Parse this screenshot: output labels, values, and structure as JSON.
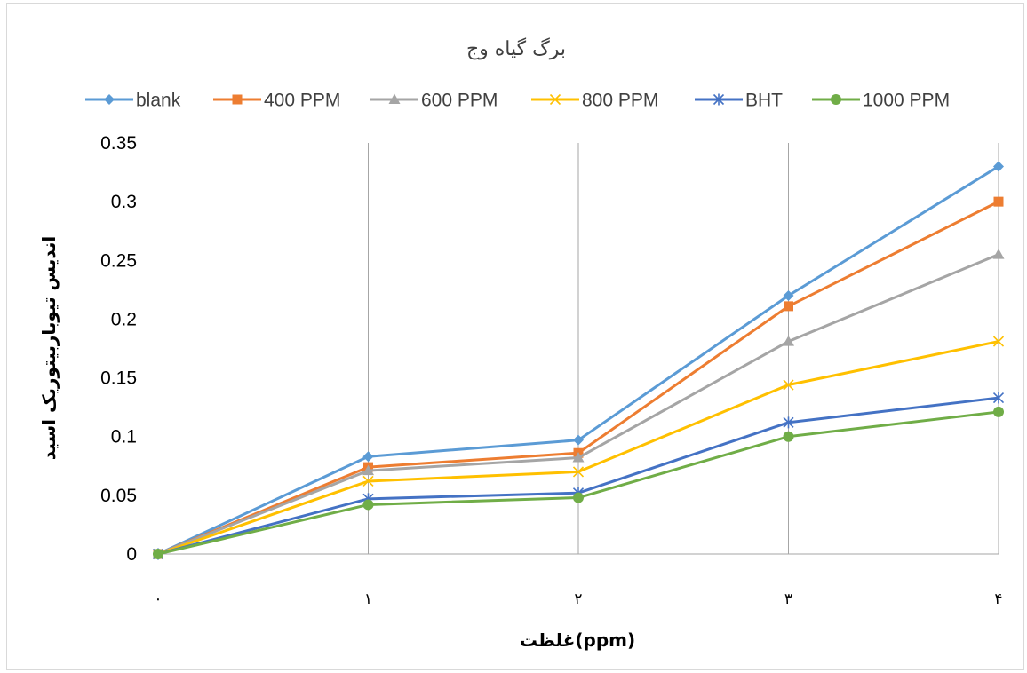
{
  "chart_data": {
    "type": "line",
    "title": "برگ گیاه وج",
    "xlabel": "غلظت(ppm)",
    "ylabel": "اندیس تیوباربیتوریک اسید",
    "categories": [
      "۰",
      "۱",
      "۲",
      "۳",
      "۴"
    ],
    "x": [
      0,
      1,
      2,
      3,
      4
    ],
    "ylim": [
      0,
      0.35
    ],
    "yticks": [
      0,
      0.05,
      0.1,
      0.15,
      0.2,
      0.25,
      0.3,
      0.35
    ],
    "ytick_labels": [
      "0",
      "0.05",
      "0.1",
      "0.15",
      "0.2",
      "0.25",
      "0.3",
      "0.35"
    ],
    "grid": "vertical",
    "legend_position": "top",
    "series": [
      {
        "name": "blank",
        "values": [
          0,
          0.083,
          0.097,
          0.22,
          0.33
        ],
        "color": "#5B9BD5",
        "marker": "diamond"
      },
      {
        "name": "400 PPM",
        "values": [
          0,
          0.074,
          0.086,
          0.211,
          0.3
        ],
        "color": "#ED7D31",
        "marker": "square"
      },
      {
        "name": "600 PPM",
        "values": [
          0,
          0.071,
          0.082,
          0.181,
          0.255
        ],
        "color": "#A5A5A5",
        "marker": "triangle"
      },
      {
        "name": "800 PPM",
        "values": [
          0,
          0.062,
          0.07,
          0.144,
          0.181
        ],
        "color": "#FFC000",
        "marker": "x"
      },
      {
        "name": "BHT",
        "values": [
          0,
          0.047,
          0.052,
          0.112,
          0.133
        ],
        "color": "#4472C4",
        "marker": "star"
      },
      {
        "name": "1000 PPM",
        "values": [
          0,
          0.042,
          0.048,
          0.1,
          0.121
        ],
        "color": "#70AD47",
        "marker": "circle"
      }
    ]
  }
}
